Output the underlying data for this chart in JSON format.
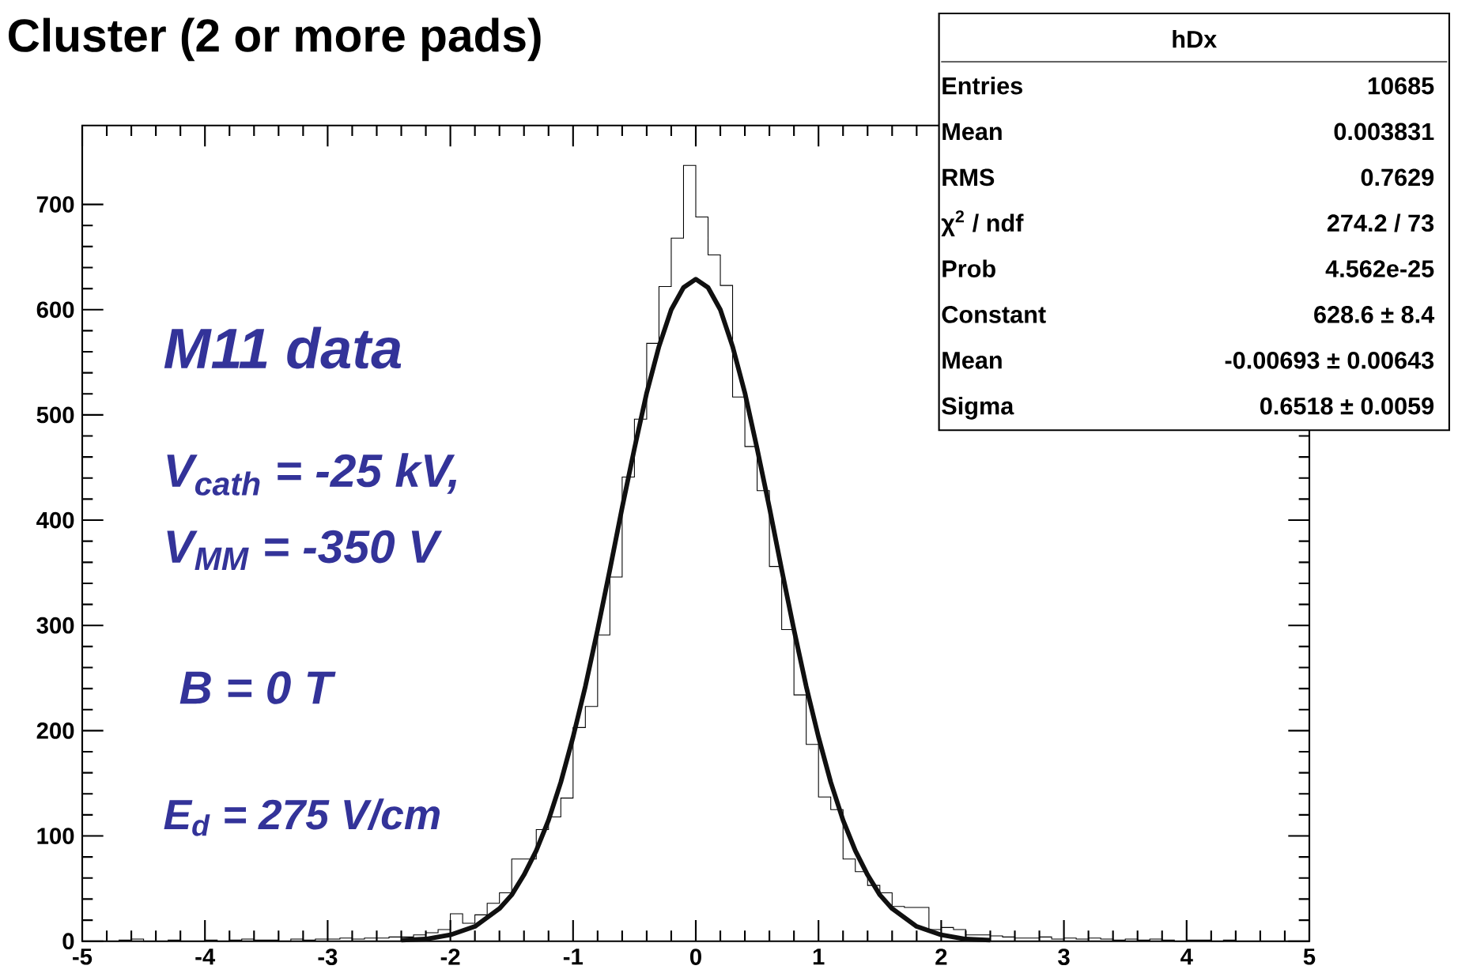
{
  "chart_data": {
    "type": "histogram",
    "title": "Cluster (2 or more pads)",
    "xlim": [
      -5,
      5
    ],
    "ylim": [
      0,
      775
    ],
    "xticks": [
      -5,
      -4,
      -3,
      -2,
      -1,
      0,
      1,
      2,
      3,
      4,
      5
    ],
    "yticks": [
      0,
      100,
      200,
      300,
      400,
      500,
      600,
      700
    ],
    "series": [
      {
        "color": "#000000",
        "bins": [
          -5.0,
          -4.9,
          -4.8,
          -4.7,
          -4.6,
          -4.5,
          -4.4,
          -4.3,
          -4.2,
          -4.1,
          -4.0,
          -3.9,
          -3.8,
          -3.7,
          -3.6,
          -3.5,
          -3.4,
          -3.3,
          -3.2,
          -3.1,
          -3.0,
          -2.9,
          -2.8,
          -2.7,
          -2.6,
          -2.5,
          -2.4,
          -2.3,
          -2.2,
          -2.1,
          -2.0,
          -1.9,
          -1.8,
          -1.7,
          -1.6,
          -1.5,
          -1.4,
          -1.3,
          -1.2,
          -1.1,
          -1.0,
          -0.9,
          -0.8,
          -0.7,
          -0.6,
          -0.5,
          -0.4,
          -0.3,
          -0.2,
          -0.1,
          0.0,
          0.1,
          0.2,
          0.3,
          0.4,
          0.5,
          0.6,
          0.7,
          0.8,
          0.9,
          1.0,
          1.1,
          1.2,
          1.3,
          1.4,
          1.5,
          1.6,
          1.7,
          1.8,
          1.9,
          2.0,
          2.1,
          2.2,
          2.3,
          2.4,
          2.5,
          2.6,
          2.7,
          2.8,
          2.9,
          3.0,
          3.1,
          3.2,
          3.3,
          3.4,
          3.5,
          3.6,
          3.7,
          3.8,
          3.9,
          4.0,
          4.1,
          4.2,
          4.3,
          4.4,
          4.5,
          4.6,
          4.7,
          4.8,
          4.9,
          5.0
        ],
        "values": [
          0,
          0,
          0,
          1,
          2,
          0,
          0,
          1,
          0,
          0,
          1,
          0,
          1,
          2,
          1,
          1,
          0,
          2,
          1,
          2,
          2,
          3,
          2,
          3,
          3,
          4,
          4,
          6,
          8,
          11,
          26,
          17,
          25,
          36,
          46,
          78,
          78,
          106,
          118,
          136,
          203,
          223,
          291,
          346,
          441,
          496,
          568,
          622,
          668,
          737,
          688,
          652,
          623,
          517,
          470,
          428,
          356,
          296,
          234,
          187,
          137,
          125,
          78,
          66,
          53,
          46,
          33,
          32,
          32,
          11,
          13,
          11,
          6,
          6,
          5,
          4,
          3,
          3,
          4,
          2,
          3,
          2,
          3,
          2,
          1,
          2,
          1,
          2,
          1,
          0,
          1,
          1,
          0,
          1,
          0,
          0,
          0,
          0,
          0,
          0
        ]
      },
      {
        "type": "line",
        "color": "#101010",
        "x": [
          -2.4,
          -2.2,
          -2.0,
          -1.8,
          -1.6,
          -1.5,
          -1.4,
          -1.3,
          -1.2,
          -1.1,
          -1.0,
          -0.9,
          -0.8,
          -0.7,
          -0.6,
          -0.5,
          -0.4,
          -0.3,
          -0.2,
          -0.1,
          0,
          0.1,
          0.2,
          0.3,
          0.4,
          0.5,
          0.6,
          0.7,
          0.8,
          0.9,
          1.0,
          1.1,
          1.2,
          1.3,
          1.4,
          1.5,
          1.6,
          1.8,
          2.0,
          2.2,
          2.4
        ],
        "values": [
          1,
          2,
          6,
          14,
          31,
          44,
          63,
          86,
          115,
          151,
          194,
          242,
          296,
          353,
          412,
          468,
          521,
          565,
          600,
          621,
          629,
          621,
          600,
          565,
          521,
          468,
          412,
          353,
          296,
          242,
          194,
          151,
          115,
          86,
          63,
          44,
          31,
          14,
          6,
          2,
          1
        ]
      }
    ],
    "annotations": [
      "M11 data",
      "V$_{cath}$ = -25 kV,",
      "V$_{MM}$ = -350 V",
      "B = 0 T",
      "E$_{d}$ = 275 V/cm",
      "hDx",
      "Entries",
      "10685",
      "Mean",
      "0.003831",
      "RMS",
      "0.7629",
      "χ$^{2}$ / ndf",
      "274.2 / 73",
      "Prob",
      "4.562e-25",
      "Constant",
      "628.6 ± 8.4",
      "Mean",
      "-0.00693 ± 0.00643",
      "Sigma",
      "0.6518 ± 0.0059"
    ]
  }
}
